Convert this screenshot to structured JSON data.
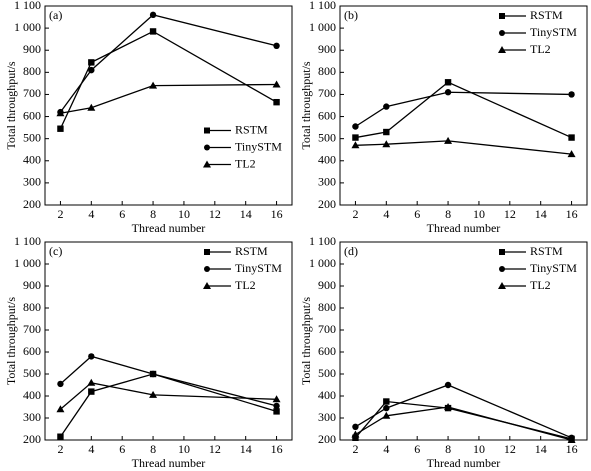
{
  "chart_data": [
    {
      "type": "line",
      "title": "(a)",
      "xlabel": "Thread number",
      "ylabel": "Total throughput/s",
      "x": [
        2,
        4,
        8,
        16
      ],
      "xlim": [
        1,
        17
      ],
      "xticks": [
        2,
        4,
        6,
        8,
        10,
        12,
        14,
        16
      ],
      "ylim": [
        200,
        1100
      ],
      "yticks": [
        200,
        300,
        400,
        500,
        600,
        700,
        800,
        900,
        {
          "value": 1000,
          "label": "1 000"
        },
        {
          "value": 1100,
          "label": "1 100"
        }
      ],
      "legend": "center right",
      "series": [
        {
          "name": "RSTM",
          "color": "#000000",
          "marker": "square",
          "values": [
            545,
            845,
            985,
            665
          ]
        },
        {
          "name": "TinySTM",
          "color": "#000000",
          "marker": "circle",
          "values": [
            620,
            810,
            1060,
            920
          ]
        },
        {
          "name": "TL2",
          "color": "#000000",
          "marker": "triangle",
          "values": [
            615,
            640,
            740,
            745
          ]
        }
      ]
    },
    {
      "type": "line",
      "title": "(b)",
      "xlabel": "Thread number",
      "ylabel": "Total throughput/s",
      "x": [
        2,
        4,
        8,
        16
      ],
      "xlim": [
        1,
        17
      ],
      "xticks": [
        2,
        4,
        6,
        8,
        10,
        12,
        14,
        16
      ],
      "ylim": [
        200,
        1100
      ],
      "yticks": [
        200,
        300,
        400,
        500,
        600,
        700,
        800,
        900,
        {
          "value": 1000,
          "label": "1 000"
        },
        {
          "value": 1100,
          "label": "1 100"
        }
      ],
      "legend": "upper right",
      "series": [
        {
          "name": "RSTM",
          "color": "#000000",
          "marker": "square",
          "values": [
            505,
            530,
            755,
            505
          ]
        },
        {
          "name": "TinySTM",
          "color": "#000000",
          "marker": "circle",
          "values": [
            555,
            645,
            710,
            700
          ]
        },
        {
          "name": "TL2",
          "color": "#000000",
          "marker": "triangle",
          "values": [
            470,
            475,
            490,
            430
          ]
        }
      ]
    },
    {
      "type": "line",
      "title": "(c)",
      "xlabel": "Thread number",
      "ylabel": "Total throughput/s",
      "x": [
        2,
        4,
        8,
        16
      ],
      "xlim": [
        1,
        17
      ],
      "xticks": [
        2,
        4,
        6,
        8,
        10,
        12,
        14,
        16
      ],
      "ylim": [
        200,
        1100
      ],
      "yticks": [
        200,
        300,
        400,
        500,
        600,
        700,
        800,
        900,
        {
          "value": 1000,
          "label": "1 000"
        },
        {
          "value": 1100,
          "label": "1 100"
        }
      ],
      "legend": "upper right",
      "series": [
        {
          "name": "RSTM",
          "color": "#000000",
          "marker": "square",
          "values": [
            215,
            420,
            500,
            330
          ]
        },
        {
          "name": "TinySTM",
          "color": "#000000",
          "marker": "circle",
          "values": [
            455,
            580,
            500,
            355
          ]
        },
        {
          "name": "TL2",
          "color": "#000000",
          "marker": "triangle",
          "values": [
            340,
            460,
            405,
            385
          ]
        }
      ]
    },
    {
      "type": "line",
      "title": "(d)",
      "xlabel": "Thread number",
      "ylabel": "Total throughput/s",
      "x": [
        2,
        4,
        8,
        16
      ],
      "xlim": [
        1,
        17
      ],
      "xticks": [
        2,
        4,
        6,
        8,
        10,
        12,
        14,
        16
      ],
      "ylim": [
        200,
        1100
      ],
      "yticks": [
        200,
        300,
        400,
        500,
        600,
        700,
        800,
        900,
        {
          "value": 1000,
          "label": "1 000"
        },
        {
          "value": 1100,
          "label": "1 100"
        }
      ],
      "legend": "upper right",
      "series": [
        {
          "name": "RSTM",
          "color": "#000000",
          "marker": "square",
          "values": [
            210,
            375,
            345,
            205
          ]
        },
        {
          "name": "TinySTM",
          "color": "#000000",
          "marker": "circle",
          "values": [
            260,
            345,
            450,
            210
          ]
        },
        {
          "name": "TL2",
          "color": "#000000",
          "marker": "triangle",
          "values": [
            225,
            310,
            350,
            200
          ]
        }
      ]
    }
  ]
}
